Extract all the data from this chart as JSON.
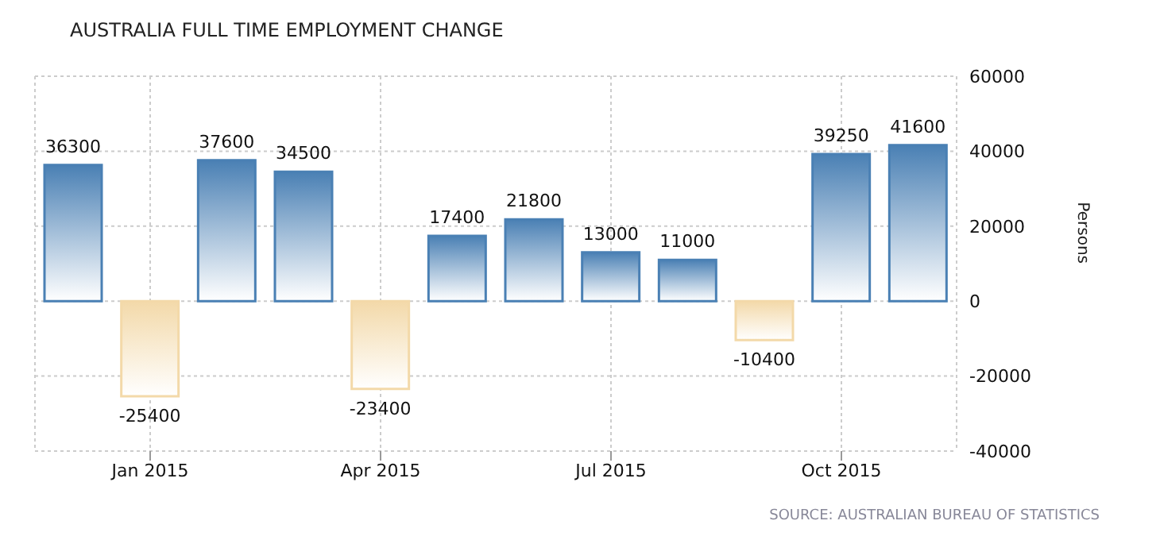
{
  "chart_data": {
    "type": "bar",
    "title": "AUSTRALIA FULL TIME EMPLOYMENT CHANGE",
    "categories": [
      null,
      "Jan 2015",
      null,
      null,
      "Apr 2015",
      null,
      null,
      "Jul 2015",
      null,
      null,
      "Oct 2015",
      null
    ],
    "values": [
      36300,
      -25400,
      37600,
      34500,
      -23400,
      17400,
      21800,
      13000,
      11000,
      -10400,
      39250,
      41600
    ],
    "colors": [
      "#4a80b4",
      "#f3d9a9",
      "#4a80b4",
      "#4a80b4",
      "#f3d9a9",
      "#4a80b4",
      "#4a80b4",
      "#4a80b4",
      "#4a80b4",
      "#f3d9a9",
      "#4a80b4",
      "#4a80b4"
    ],
    "data_labels": true,
    "ylabel": "Persons",
    "ylim": [
      -40000,
      60000
    ],
    "yticks": [
      -40000,
      -20000,
      0,
      20000,
      40000,
      60000
    ],
    "grid": true,
    "annotations": [
      "SOURCE: AUSTRALIAN BUREAU OF STATISTICS"
    ]
  }
}
